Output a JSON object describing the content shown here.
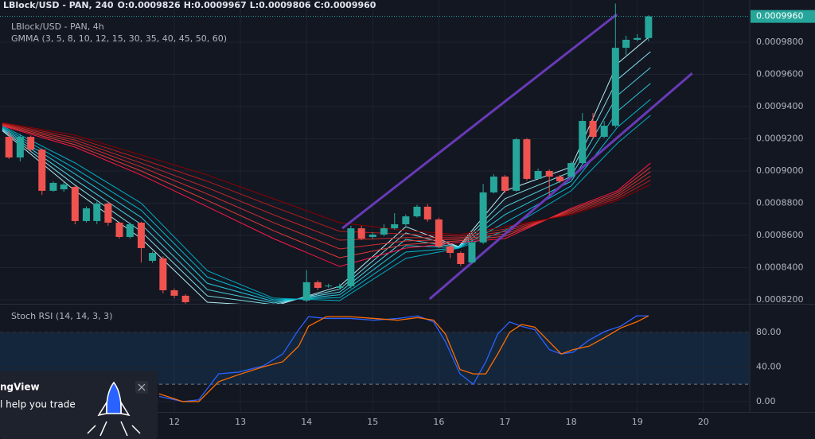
{
  "chart_data": [
    {
      "type": "candlestick",
      "header": "LBlock/USD - PAN, 240",
      "ohlc_labels": [
        "O:0.0009826",
        "H:0.0009967",
        "L:0.0009806",
        "C:0.0009960"
      ],
      "title": "LBlock/USD - PAN, 4h",
      "indicator": "GMMA (3, 5, 8, 10, 12, 15, 30, 35, 40, 45, 50, 60)",
      "up_color": "#26a69a",
      "down_color": "#ef5350",
      "x": [
        9.5,
        9.67,
        9.83,
        10,
        10.17,
        10.33,
        10.5,
        10.67,
        10.83,
        11,
        11.17,
        11.33,
        11.5,
        11.67,
        11.83,
        12,
        12.17,
        14,
        14.17,
        14.33,
        14.5,
        14.67,
        14.83,
        15,
        15.17,
        15.33,
        15.5,
        15.67,
        15.83,
        16,
        16.17,
        16.33,
        16.5,
        16.67,
        16.83,
        17,
        17.17,
        17.33,
        17.5,
        17.67,
        17.83,
        18,
        18.17,
        18.33,
        18.5,
        18.67,
        18.83,
        19,
        19.17
      ],
      "open": [
        0.0009212,
        0.0009084,
        0.0009212,
        0.0009133,
        0.0008877,
        0.0008886,
        0.0008901,
        0.0008689,
        0.0008689,
        0.0008798,
        0.0008679,
        0.000859,
        0.0008679,
        0.0008442,
        0.0008457,
        0.0008259,
        0.0008225,
        0.0008195,
        0.0008309,
        0.0008284,
        0.0008274,
        0.0008284,
        0.0008644,
        0.000859,
        0.0008605,
        0.0008644,
        0.0008669,
        0.0008718,
        0.0008778,
        0.0008699,
        0.0008531,
        0.0008491,
        0.0008432,
        0.0008556,
        0.0008867,
        0.0008965,
        0.0008877,
        0.0009197,
        0.0008951,
        0.0009,
        0.0008965,
        0.0008965,
        0.0009049,
        0.0009311,
        0.0009212,
        0.0009281,
        0.0009765,
        0.0009815,
        0.0009826
      ],
      "high": [
        0.0009247,
        0.000923,
        0.000922,
        0.000914,
        0.0008935,
        0.000893,
        0.000891,
        0.000878,
        0.000881,
        0.000881,
        0.0008685,
        0.000868,
        0.0008685,
        0.00085,
        0.000847,
        0.000827,
        0.0008235,
        0.0008383,
        0.000832,
        0.00083,
        0.00083,
        0.000866,
        0.000866,
        0.000862,
        0.0008669,
        0.0008738,
        0.000873,
        0.000879,
        0.0008795,
        0.000871,
        0.000854,
        0.00085,
        0.000857,
        0.000892,
        0.000898,
        0.0008975,
        0.0009205,
        0.0009205,
        0.0009015,
        0.000901,
        0.0008975,
        0.000906,
        0.000936,
        0.000936,
        0.000931,
        0.001004,
        0.000984,
        0.000985,
        0.0009967
      ],
      "low": [
        0.0009074,
        0.000906,
        0.000912,
        0.0008852,
        0.000887,
        0.000887,
        0.0008669,
        0.000868,
        0.000867,
        0.000866,
        0.000858,
        0.000858,
        0.0008432,
        0.000843,
        0.000824,
        0.000821,
        0.0008176,
        0.0008186,
        0.000826,
        0.0008275,
        0.0008265,
        0.000827,
        0.000857,
        0.000858,
        0.0008595,
        0.0008635,
        0.000866,
        0.000871,
        0.0008685,
        0.000852,
        0.000846,
        0.000841,
        0.0008425,
        0.0008545,
        0.000886,
        0.0008865,
        0.000887,
        0.000894,
        0.0008945,
        0.000885,
        0.0008925,
        0.0008955,
        0.000904,
        0.00092,
        0.0009205,
        0.000927,
        0.000972,
        0.0009805,
        0.0009806
      ],
      "close": [
        0.0009084,
        0.0009212,
        0.0009133,
        0.0008877,
        0.0008926,
        0.0008916,
        0.0008689,
        0.0008768,
        0.0008798,
        0.0008679,
        0.000859,
        0.0008669,
        0.0008521,
        0.0008491,
        0.0008259,
        0.0008225,
        0.0008185,
        0.0008309,
        0.0008274,
        0.0008288,
        0.0008284,
        0.0008644,
        0.000858,
        0.0008605,
        0.0008644,
        0.0008669,
        0.0008718,
        0.0008778,
        0.0008699,
        0.0008531,
        0.0008491,
        0.0008422,
        0.0008556,
        0.0008867,
        0.0008965,
        0.0008877,
        0.0009197,
        0.0008951,
        0.0009,
        0.0008965,
        0.0008936,
        0.0009049,
        0.0009311,
        0.0009212,
        0.0009281,
        0.0009765,
        0.0009815,
        0.0009826,
        0.000996
      ],
      "close_label": "0.0009960",
      "xlim": [
        9.365,
        20.7
      ],
      "xticks": [
        12,
        13,
        14,
        15,
        16,
        17,
        18,
        19,
        20
      ],
      "ylim": [
        0.0008175,
        0.0010062
      ],
      "yticks": [
        {
          "value": 0.00082,
          "label": "0.0008200"
        },
        {
          "value": 0.00084,
          "label": "0.0008400"
        },
        {
          "value": 0.00086,
          "label": "0.0008600"
        },
        {
          "value": 0.00088,
          "label": "0.0008800"
        },
        {
          "value": 0.0009,
          "label": "0.0009000"
        },
        {
          "value": 0.00092,
          "label": "0.0009200"
        },
        {
          "value": 0.00094,
          "label": "0.0009400"
        },
        {
          "value": 0.00096,
          "label": "0.0009600"
        },
        {
          "value": 0.00098,
          "label": "0.0009800"
        }
      ],
      "gmma": {
        "x": [
          9.4,
          10.5,
          11.5,
          12.5,
          13.5,
          14.5,
          15.5,
          16.3,
          17,
          18,
          18.7,
          19.2
        ],
        "series": [
          {
            "color": "#b2ebf2",
            "values": [
              0.000925,
              0.0008877,
              0.000858,
              0.0008185,
              0.000816,
              0.0008284,
              0.0008654,
              0.000853,
              0.0008877,
              0.0009025,
              0.0009667,
              0.000984
            ]
          },
          {
            "color": "#80deea",
            "values": [
              0.0009256,
              0.0008912,
              0.0008624,
              0.0008224,
              0.000817,
              0.0008266,
              0.0008615,
              0.0008528,
              0.0008828,
              0.0008995,
              0.0009568,
              0.0009741
            ]
          },
          {
            "color": "#4dd0e1",
            "values": [
              0.0009262,
              0.0008946,
              0.0008668,
              0.0008263,
              0.000818,
              0.0008248,
              0.0008575,
              0.0008526,
              0.0008778,
              0.0008966,
              0.0009469,
              0.0009642
            ]
          },
          {
            "color": "#26c6da",
            "values": [
              0.0009268,
              0.0008981,
              0.0008712,
              0.0008302,
              0.000819,
              0.0008231,
              0.0008536,
              0.0008524,
              0.0008729,
              0.0008936,
              0.0009371,
              0.0009544
            ]
          },
          {
            "color": "#00bcd4",
            "values": [
              0.0009274,
              0.0009015,
              0.0008756,
              0.0008341,
              0.00082,
              0.0008213,
              0.0008496,
              0.0008522,
              0.0008679,
              0.0008907,
              0.0009272,
              0.0009445
            ]
          },
          {
            "color": "#00acc1",
            "values": [
              0.000928,
              0.000905,
              0.00088,
              0.000838,
              0.000821,
              0.0008195,
              0.0008457,
              0.000852,
              0.000863,
              0.0008877,
              0.0009173,
              0.0009346
            ]
          },
          {
            "color": "#ff1744",
            "values": [
              0.000928,
              0.0009148,
              0.0008975,
              0.0008778,
              0.000858,
              0.0008407,
              0.0008521,
              0.0008556,
              0.000858,
              0.0008768,
              0.0008877,
              0.0009049
            ]
          },
          {
            "color": "#e53935",
            "values": [
              0.0009284,
              0.0009163,
              0.0009,
              0.0008817,
              0.0008629,
              0.0008461,
              0.0008543,
              0.0008566,
              0.0008595,
              0.000876,
              0.0008865,
              0.0009022
            ]
          },
          {
            "color": "#d32f2f",
            "values": [
              0.0009288,
              0.0009178,
              0.0009025,
              0.0008857,
              0.0008679,
              0.0008516,
              0.0008565,
              0.0008576,
              0.0008609,
              0.0008752,
              0.0008853,
              0.0008996
            ]
          },
          {
            "color": "#c62828",
            "values": [
              0.0009292,
              0.0009192,
              0.0009049,
              0.0008896,
              0.0008728,
              0.000857,
              0.0008586,
              0.0008585,
              0.0008624,
              0.0008744,
              0.0008841,
              0.0008969
            ]
          },
          {
            "color": "#b71c1c",
            "values": [
              0.0009296,
              0.0009207,
              0.0009074,
              0.0008936,
              0.0008778,
              0.0008625,
              0.0008608,
              0.0008595,
              0.0008639,
              0.0008736,
              0.0008829,
              0.0008943
            ]
          },
          {
            "color": "#8e0000",
            "values": [
              0.00093,
              0.0009222,
              0.0009099,
              0.0008975,
              0.0008827,
              0.0008679,
              0.000863,
              0.0008605,
              0.0008654,
              0.0008728,
              0.0008817,
              0.0008916
            ]
          }
        ]
      },
      "trendlines": [
        {
          "color": "#673ab7",
          "x": [
            14.54,
            18.69
          ],
          "values": [
            0.0008644,
            0.0009973
          ]
        },
        {
          "color": "#673ab7",
          "x": [
            15.86,
            19.83
          ],
          "values": [
            0.0008205,
            0.0009607
          ]
        }
      ]
    },
    {
      "type": "line",
      "title": "Stoch RSI (14, 14, 3, 3)",
      "x": [
        11.77,
        12.13,
        12.37,
        12.67,
        12.97,
        13.34,
        13.64,
        13.88,
        14.03,
        14.3,
        14.66,
        15.02,
        15.38,
        15.68,
        15.92,
        16.1,
        16.32,
        16.52,
        16.71,
        16.89,
        17.07,
        17.25,
        17.45,
        17.67,
        17.85,
        18.03,
        18.27,
        18.51,
        18.75,
        18.99,
        19.17
      ],
      "series": [
        {
          "color": "#2962ff",
          "values": [
            6,
            0,
            2,
            32,
            34,
            41,
            55,
            83,
            98,
            96,
            96,
            94,
            96,
            99,
            92,
            69,
            32,
            20,
            46,
            78,
            92,
            87,
            83,
            60,
            55,
            57,
            71,
            81,
            87,
            99,
            99
          ]
        },
        {
          "color": "#ff6d00",
          "values": [
            9,
            0,
            0,
            23,
            31,
            40,
            46,
            64,
            87,
            98,
            98,
            96,
            94,
            97,
            94,
            78,
            37,
            32,
            32,
            55,
            80,
            89,
            86,
            69,
            55,
            60,
            64,
            74,
            85,
            92,
            99
          ]
        }
      ],
      "band": [
        20,
        80
      ],
      "ylim": [
        -12,
        112
      ],
      "yticks": [
        {
          "value": 80,
          "label": "80.00"
        },
        {
          "value": 40,
          "label": "40.00"
        },
        {
          "value": 0,
          "label": "0.00"
        }
      ]
    }
  ],
  "popup": {
    "title": "ngView",
    "text": "l help you trade"
  }
}
